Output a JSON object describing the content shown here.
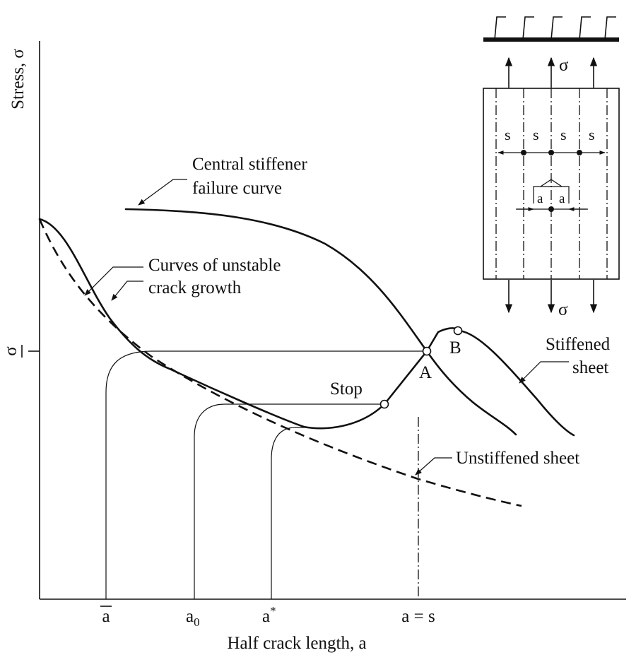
{
  "axes": {
    "y_label": "Stress, σ",
    "x_label": "Half crack length, a",
    "y_tick": "σ",
    "x_ticks": {
      "a_bar": "a",
      "a0_main": "a",
      "a0_sub": "0",
      "astar_main": "a",
      "astar_sup": "*",
      "a_eq_s": "a = s"
    }
  },
  "labels": {
    "central_line1": "Central stiffener",
    "central_line2": "failure curve",
    "unstable_line1": "Curves of unstable",
    "unstable_line2": "crack growth",
    "stiffened_line1": "Stiffened",
    "stiffened_line2": "sheet",
    "unstiffened": "Unstiffened sheet",
    "stop": "Stop",
    "point_a": "A",
    "point_b": "B"
  },
  "inset": {
    "sigma_top": "σ",
    "sigma_bottom": "σ",
    "spacing": [
      "s",
      "s",
      "s",
      "s"
    ],
    "crack_half": [
      "a",
      "a"
    ]
  }
}
